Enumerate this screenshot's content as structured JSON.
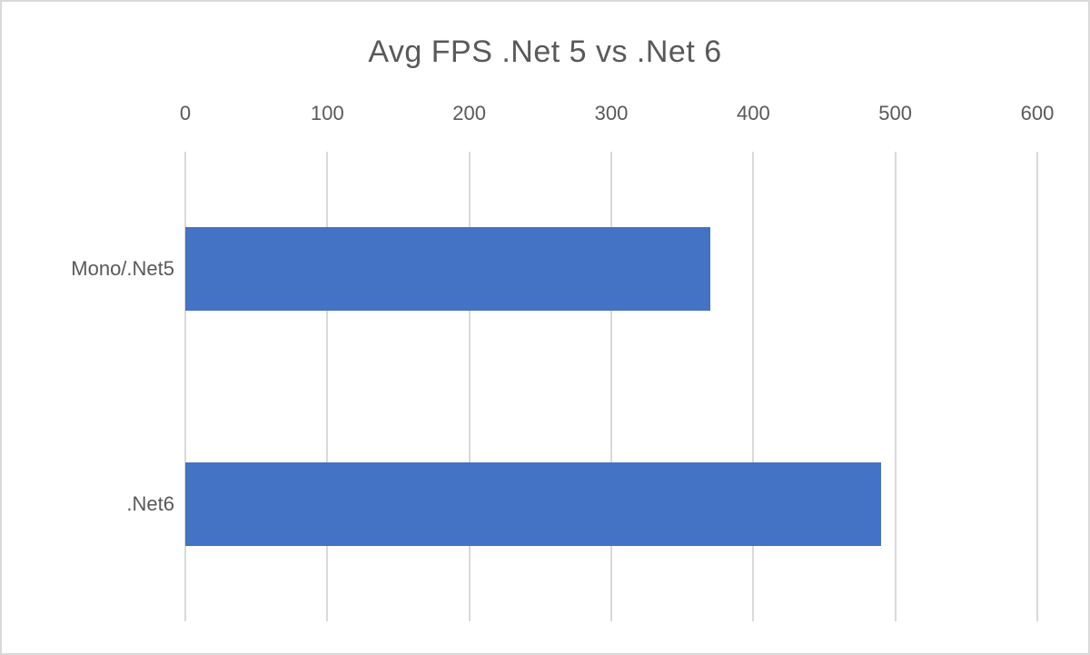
{
  "frame": {
    "background": "#ffffff",
    "border_color": "#d9d9d9"
  },
  "chart_data": {
    "type": "bar",
    "orientation": "horizontal",
    "title": "Avg FPS .Net 5 vs .Net 6",
    "categories": [
      "Mono/.Net5",
      ".Net6"
    ],
    "values": [
      370,
      490
    ],
    "xlabel": "",
    "ylabel": "",
    "xlim": [
      0,
      600
    ],
    "xticks": [
      0,
      100,
      200,
      300,
      400,
      500,
      600
    ],
    "grid": true,
    "legend": "none",
    "axis_position": "top",
    "bar_color": "#4472c4",
    "gridline_color": "#d9d9d9",
    "text_color": "#595959"
  }
}
